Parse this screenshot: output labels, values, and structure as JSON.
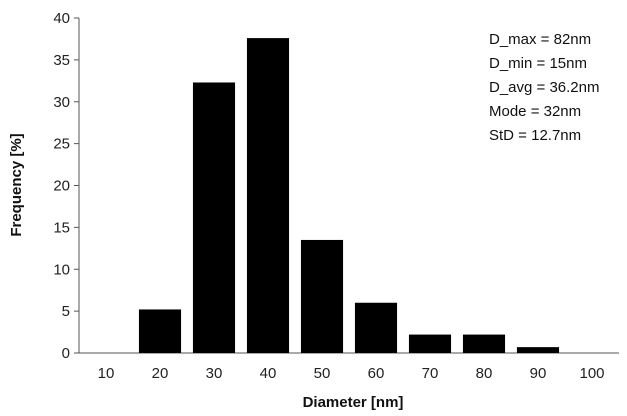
{
  "chart_data": {
    "type": "bar",
    "title": "",
    "xlabel": "Diameter [nm]",
    "ylabel": "Frequency [%]",
    "categories": [
      "10",
      "20",
      "30",
      "40",
      "50",
      "60",
      "70",
      "80",
      "90",
      "100"
    ],
    "values": [
      0,
      5.2,
      32.3,
      37.6,
      13.5,
      6.0,
      2.2,
      2.2,
      0.7,
      0
    ],
    "ylim": [
      0,
      40
    ],
    "yticks": [
      "0",
      "5",
      "10",
      "15",
      "20",
      "25",
      "30",
      "35",
      "40"
    ],
    "grid": false,
    "bar_color": "#000000",
    "annotations": [
      "D_max = 82nm",
      "D_min = 15nm",
      "D_avg = 36.2nm",
      "Mode = 32nm",
      "StD = 12.7nm"
    ]
  }
}
